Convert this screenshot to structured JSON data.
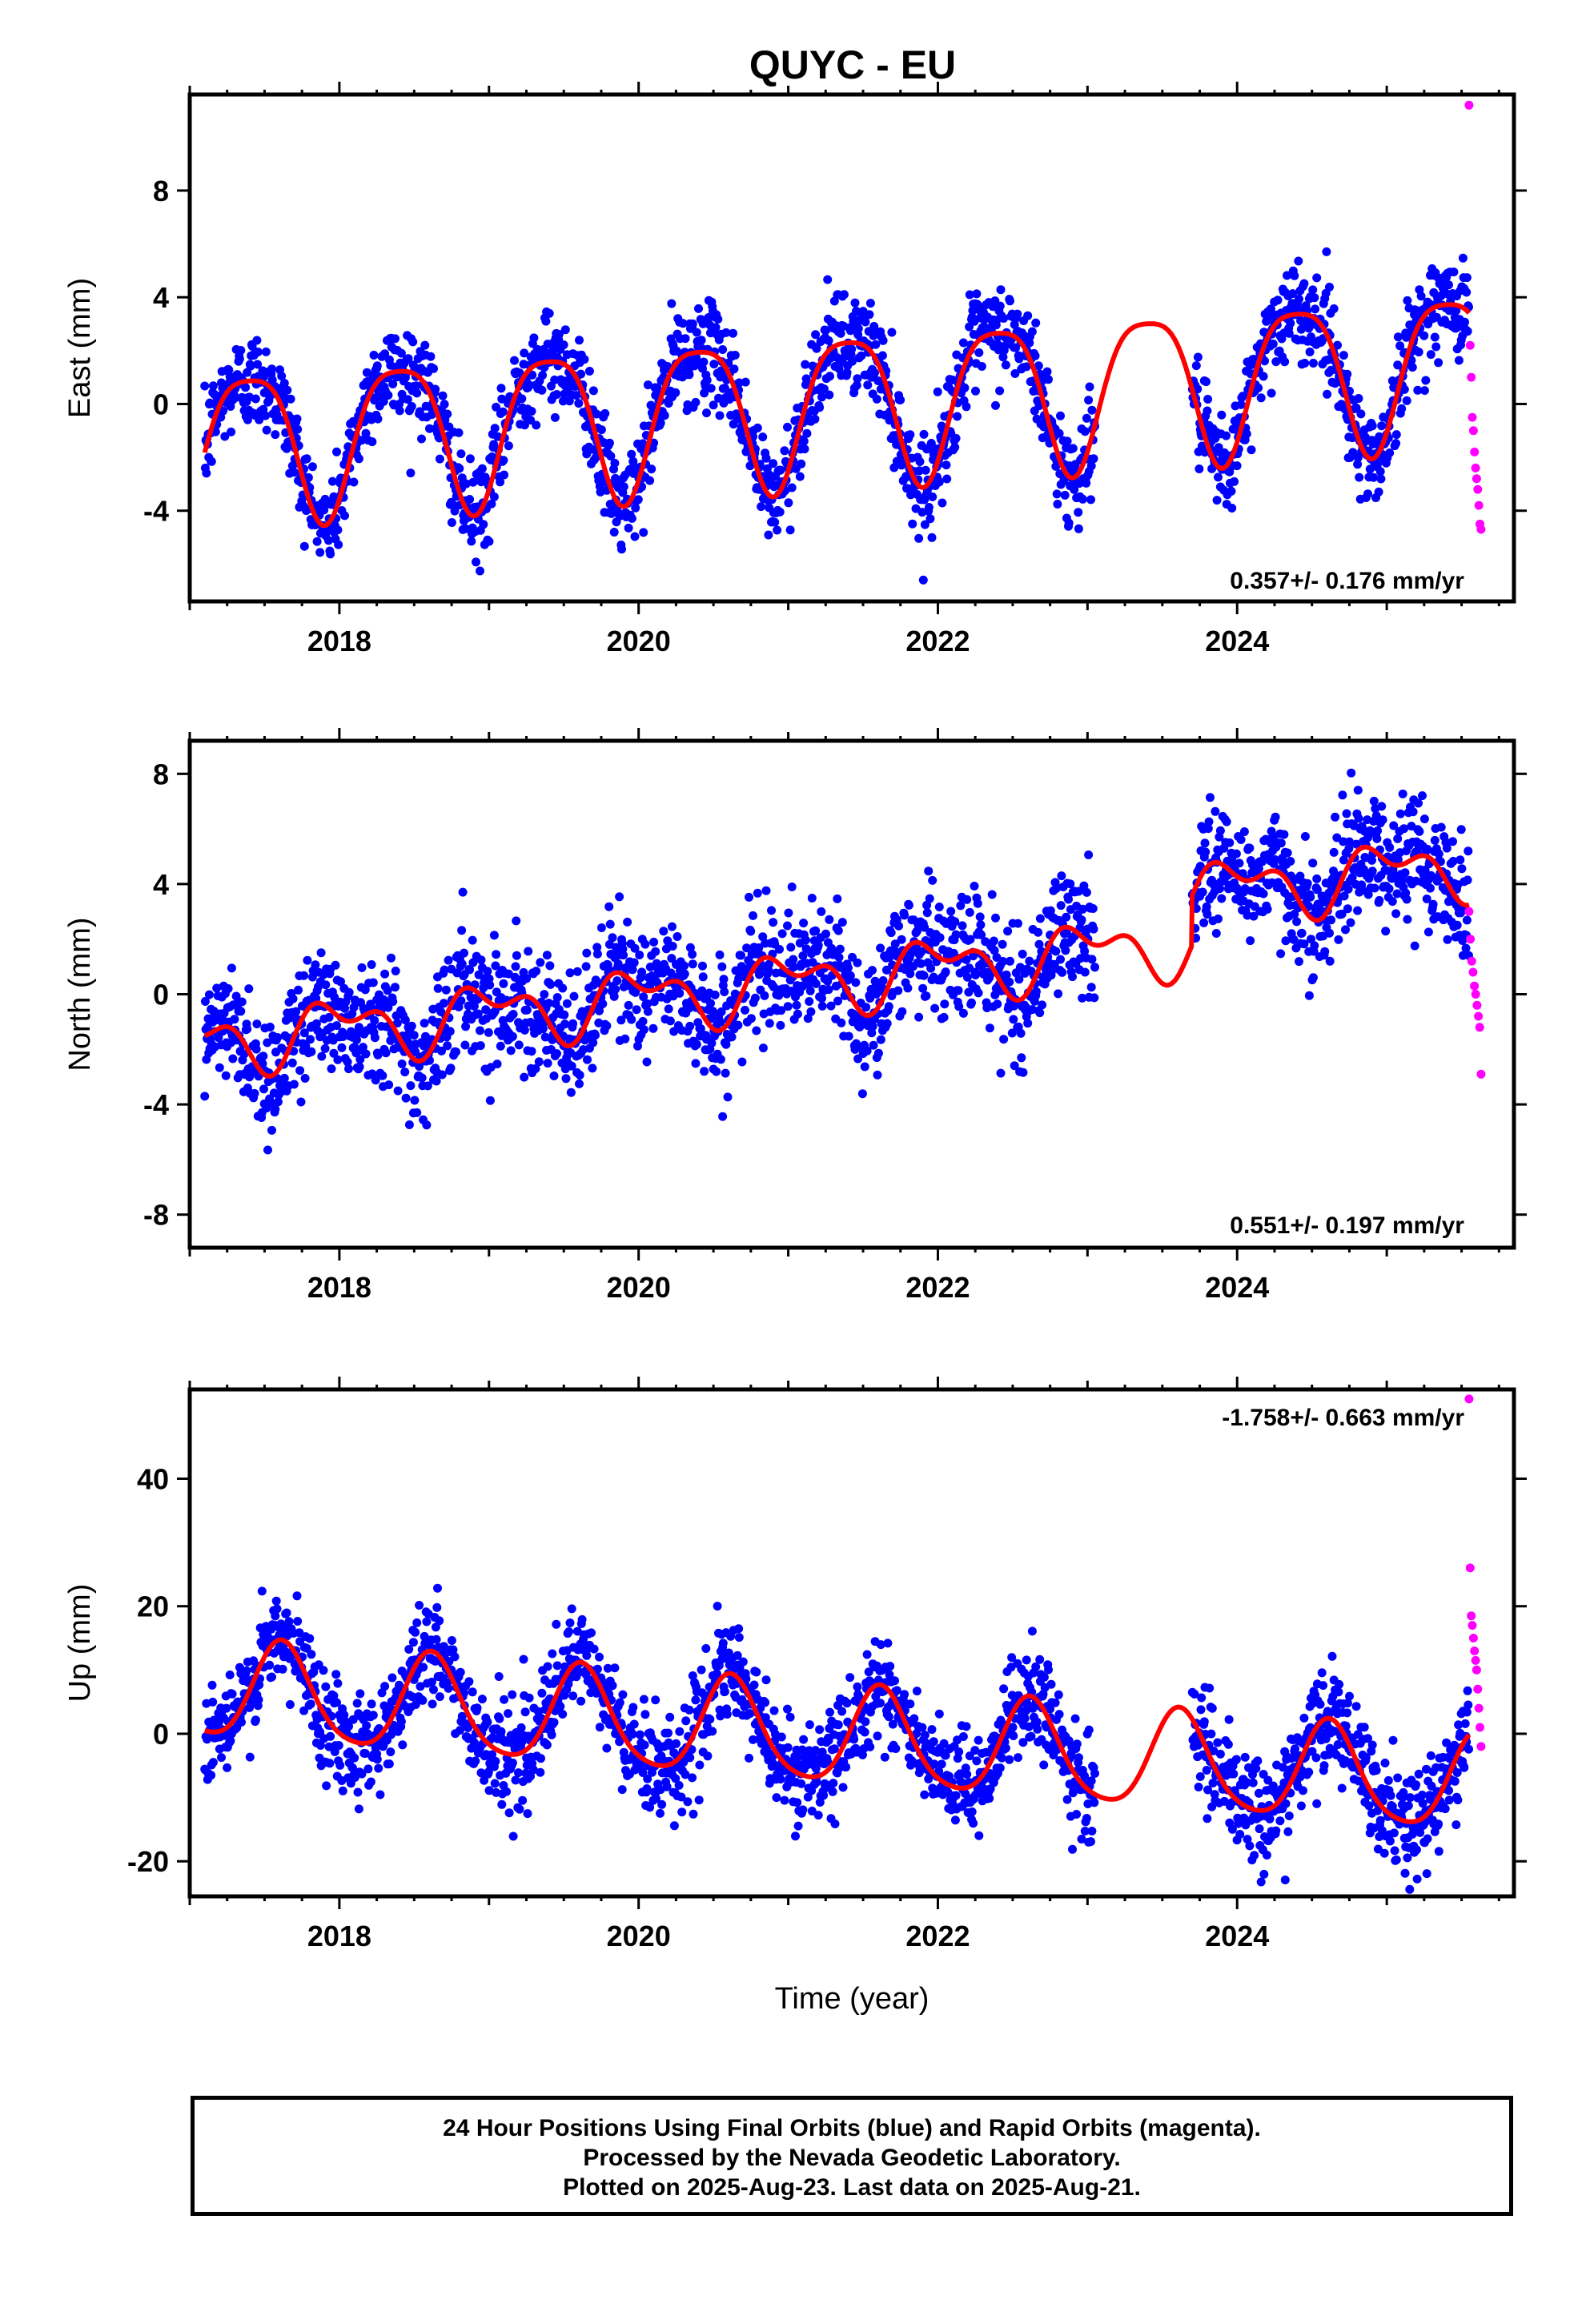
{
  "title": "QUYC - EU",
  "colors": {
    "final": "#0000ff",
    "rapid": "#ff00ff",
    "model": "#ff0000"
  },
  "footer": {
    "line1": "24 Hour Positions Using Final Orbits (blue) and Rapid Orbits (magenta).",
    "line2": "Processed by the Nevada Geodetic Laboratory.",
    "line3": "Plotted on 2025-Aug-23. Last data on 2025-Aug-21."
  },
  "chart_data": [
    {
      "type": "scatter",
      "ylabel": "East (mm)",
      "xlabel": "",
      "xlim": [
        2017.0,
        2025.85
      ],
      "ylim": [
        -7.4,
        11.6
      ],
      "yticks": [
        -4,
        0,
        4,
        8
      ],
      "xticks": [
        2018,
        2020,
        2022,
        2024
      ],
      "rate_label": "0.357+/- 0.176 mm/yr",
      "model": {
        "offset": -0.05,
        "trend": 0.357,
        "amp": 2.8,
        "peak": 0.4,
        "amp2": 0.6,
        "peak2": 0.15,
        "t0": 2021.0
      },
      "data_span": [
        2017.1,
        2025.55
      ],
      "gaps": [
        [
          2023.05,
          2023.7
        ]
      ],
      "scatter_sigma": 0.9,
      "rapid": {
        "start": 2025.55,
        "end": 2025.63,
        "values": [
          11.2,
          2.2,
          1.0,
          -0.5,
          -1.0,
          -1.8,
          -2.4,
          -2.8,
          -3.2,
          -3.8,
          -4.5,
          -4.7
        ]
      }
    },
    {
      "type": "scatter",
      "ylabel": "North (mm)",
      "xlabel": "",
      "xlim": [
        2017.0,
        2025.85
      ],
      "ylim": [
        -9.2,
        9.2
      ],
      "yticks": [
        -8,
        -4,
        0,
        4,
        8
      ],
      "xticks": [
        2018,
        2020,
        2022,
        2024
      ],
      "rate_label": "0.551+/- 0.197 mm/yr",
      "model": {
        "offset": 0.4,
        "trend": 0.551,
        "amp": 0.9,
        "peak": 0.0,
        "amp2": 0.6,
        "peak2": 0.3,
        "t0": 2021.0
      },
      "data_span": [
        2017.1,
        2025.55
      ],
      "gaps": [
        [
          2023.05,
          2023.7
        ]
      ],
      "offset_after": {
        "time": 2023.7,
        "value": 1.8
      },
      "scatter_sigma": 1.1,
      "rapid": {
        "start": 2025.55,
        "end": 2025.63,
        "values": [
          3.0,
          2.0,
          1.2,
          0.8,
          0.3,
          0.0,
          -0.4,
          -0.8,
          -1.2,
          -2.9
        ]
      }
    },
    {
      "type": "scatter",
      "ylabel": "Up (mm)",
      "xlabel": "Time (year)",
      "xlim": [
        2017.0,
        2025.85
      ],
      "ylim": [
        -25.5,
        54.0
      ],
      "yticks": [
        -20,
        0,
        20,
        40
      ],
      "xticks": [
        2018,
        2020,
        2022,
        2024
      ],
      "rate_label": "-1.758+/- 0.663 mm/yr",
      "model": {
        "offset": 0.0,
        "trend": -1.758,
        "amp": 7.6,
        "peak": 0.62,
        "amp2": 1.2,
        "peak2": 0.1,
        "t0": 2021.0
      },
      "data_span": [
        2017.1,
        2025.55
      ],
      "gaps": [
        [
          2023.05,
          2023.7
        ]
      ],
      "scatter_sigma": 4.0,
      "rapid": {
        "start": 2025.55,
        "end": 2025.63,
        "values": [
          52.5,
          26.0,
          18.5,
          17.0,
          15.0,
          13.0,
          11.5,
          10.0,
          7.0,
          4.0,
          1.0,
          -2.0
        ]
      }
    }
  ]
}
